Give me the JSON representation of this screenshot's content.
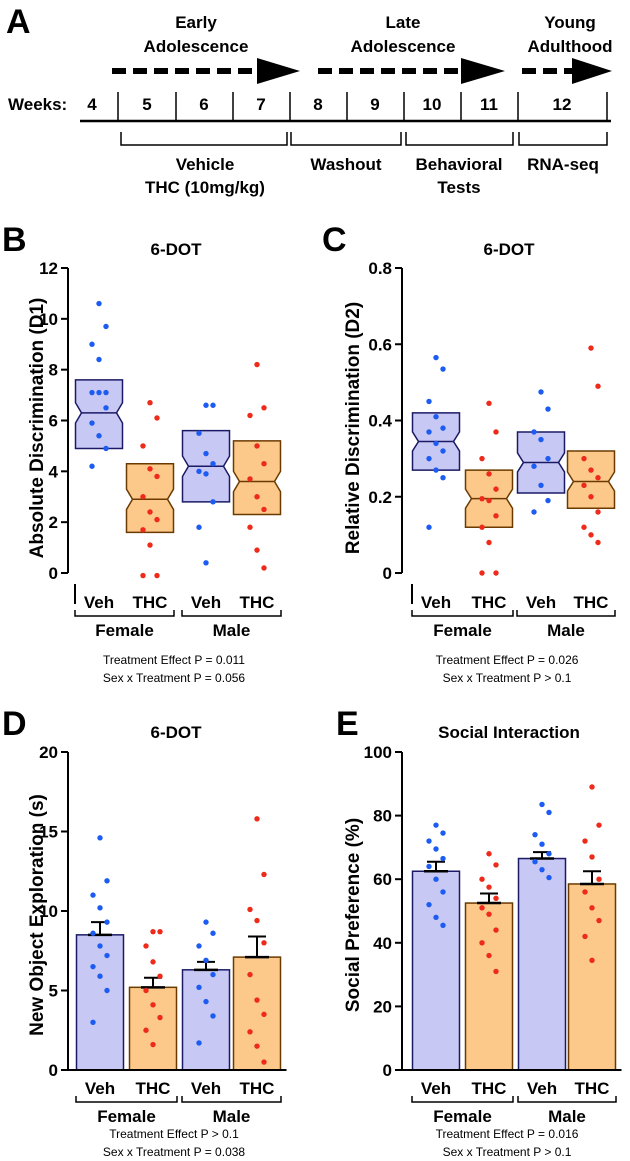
{
  "timeline": {
    "panel_label": "A",
    "stage_headers": [
      {
        "line1": "Early",
        "line2": "Adolescence"
      },
      {
        "line1": "Late",
        "line2": "Adolescence"
      },
      {
        "line1": "Young",
        "line2": "Adulthood"
      }
    ],
    "weeks_label": "Weeks:",
    "weeks": [
      "4",
      "5",
      "6",
      "7",
      "8",
      "9",
      "10",
      "11",
      "12"
    ],
    "phases": [
      {
        "line1": "Vehicle",
        "line2": "THC (10mg/kg)"
      },
      {
        "line1": "Washout",
        "line2": ""
      },
      {
        "line1": "Behavioral",
        "line2": "Tests"
      },
      {
        "line1": "RNA-seq",
        "line2": ""
      }
    ]
  },
  "colors": {
    "veh_fill": "#c8c8f4",
    "veh_stroke": "#1a1a66",
    "thc_fill": "#fcc98a",
    "thc_stroke": "#6b3a00",
    "veh_dot": "#1d5cf2",
    "thc_dot": "#ee2a1a"
  },
  "chart_data": [
    {
      "panel": "B",
      "type": "box",
      "title": "6-DOT",
      "ylabel": "Absolute Discrimination (D1)",
      "ylim": [
        0,
        12
      ],
      "yticks": [
        "0",
        "2",
        "4",
        "6",
        "8",
        "10",
        "12"
      ],
      "categories": [
        "Veh",
        "THC",
        "Veh",
        "THC"
      ],
      "groups": [
        "Female",
        "Male"
      ],
      "stats": [
        "Treatment Effect P = 0.011",
        "Sex x Treatment P = 0.056"
      ],
      "boxes": [
        {
          "q1": 4.9,
          "median": 6.3,
          "q3": 7.6,
          "notch_low": 5.9,
          "notch_high": 6.7,
          "points": [
            10.6,
            9.7,
            9.0,
            8.4,
            7.1,
            7.1,
            7.1,
            6.5,
            5.9,
            5.4,
            4.9,
            4.2
          ]
        },
        {
          "q1": 1.6,
          "median": 2.9,
          "q3": 4.3,
          "notch_low": 2.5,
          "notch_high": 3.3,
          "points": [
            6.7,
            6.1,
            5.0,
            4.1,
            3.8,
            3.0,
            2.4,
            2.1,
            1.7,
            1.1,
            -0.1,
            -0.1
          ]
        },
        {
          "q1": 2.8,
          "median": 4.2,
          "q3": 5.6,
          "notch_low": 3.8,
          "notch_high": 4.6,
          "points": [
            6.6,
            6.6,
            5.5,
            4.7,
            4.3,
            4.0,
            3.9,
            2.8,
            1.8,
            0.4
          ]
        },
        {
          "q1": 2.3,
          "median": 3.6,
          "q3": 5.2,
          "notch_low": 3.2,
          "notch_high": 4.0,
          "points": [
            8.2,
            6.5,
            6.2,
            5.0,
            4.3,
            3.7,
            3.0,
            2.5,
            1.8,
            0.9,
            0.2
          ]
        }
      ]
    },
    {
      "panel": "C",
      "type": "box",
      "title": "6-DOT",
      "ylabel": "Relative Discrimination (D2)",
      "ylim": [
        0,
        0.8
      ],
      "yticks": [
        "0",
        "0.2",
        "0.4",
        "0.6",
        "0.8"
      ],
      "categories": [
        "Veh",
        "THC",
        "Veh",
        "THC"
      ],
      "groups": [
        "Female",
        "Male"
      ],
      "stats": [
        "Treatment Effect P = 0.026",
        "Sex x Treatment P > 0.1"
      ],
      "boxes": [
        {
          "q1": 0.27,
          "median": 0.345,
          "q3": 0.42,
          "notch_low": 0.32,
          "notch_high": 0.37,
          "points": [
            0.565,
            0.535,
            0.45,
            0.41,
            0.38,
            0.37,
            0.34,
            0.32,
            0.3,
            0.27,
            0.25,
            0.12
          ]
        },
        {
          "q1": 0.12,
          "median": 0.195,
          "q3": 0.27,
          "notch_low": 0.17,
          "notch_high": 0.22,
          "points": [
            0.445,
            0.37,
            0.3,
            0.26,
            0.22,
            0.195,
            0.19,
            0.15,
            0.12,
            0.08,
            0.0,
            0.0
          ]
        },
        {
          "q1": 0.21,
          "median": 0.29,
          "q3": 0.37,
          "notch_low": 0.265,
          "notch_high": 0.315,
          "points": [
            0.475,
            0.43,
            0.37,
            0.35,
            0.3,
            0.28,
            0.23,
            0.19,
            0.16
          ]
        },
        {
          "q1": 0.17,
          "median": 0.24,
          "q3": 0.32,
          "notch_low": 0.215,
          "notch_high": 0.265,
          "points": [
            0.59,
            0.49,
            0.3,
            0.27,
            0.25,
            0.23,
            0.2,
            0.16,
            0.12,
            0.1,
            0.08
          ]
        }
      ]
    },
    {
      "panel": "D",
      "type": "bar",
      "title": "6-DOT",
      "ylabel": "New Object Exploration (s)",
      "ylim": [
        0,
        20
      ],
      "yticks": [
        "0",
        "5",
        "10",
        "15",
        "20"
      ],
      "categories": [
        "Veh",
        "THC",
        "Veh",
        "THC"
      ],
      "groups": [
        "Female",
        "Male"
      ],
      "stats": [
        "Treatment Effect P > 0.1",
        "Sex x Treatment P = 0.038"
      ],
      "bars": [
        {
          "mean": 8.5,
          "sem": 0.8,
          "points": [
            14.6,
            11.9,
            11.0,
            10.2,
            9.3,
            8.6,
            7.8,
            7.2,
            6.5,
            5.9,
            5.0,
            3.0
          ]
        },
        {
          "mean": 5.2,
          "sem": 0.6,
          "points": [
            8.7,
            8.7,
            7.8,
            6.8,
            5.9,
            5.0,
            4.1,
            3.3,
            2.5,
            1.6
          ]
        },
        {
          "mean": 6.3,
          "sem": 0.5,
          "points": [
            9.3,
            8.6,
            7.8,
            6.9,
            6.0,
            5.2,
            4.3,
            3.4,
            1.7
          ]
        },
        {
          "mean": 7.1,
          "sem": 1.3,
          "points": [
            15.8,
            12.3,
            10.1,
            9.4,
            8.0,
            6.0,
            4.4,
            3.5,
            2.4,
            1.5,
            0.5
          ]
        }
      ]
    },
    {
      "panel": "E",
      "type": "bar",
      "title": "Social Interaction",
      "ylabel": "Social Preference (%)",
      "ylim": [
        0,
        100
      ],
      "yticks": [
        "0",
        "20",
        "40",
        "60",
        "80",
        "100"
      ],
      "categories": [
        "Veh",
        "THC",
        "Veh",
        "THC"
      ],
      "groups": [
        "Female",
        "Male"
      ],
      "stats": [
        "Treatment Effect P = 0.016",
        "Sex x Treatment P > 0.1"
      ],
      "bars": [
        {
          "mean": 62.5,
          "sem": 3.0,
          "points": [
            77.0,
            74.5,
            72.0,
            69.5,
            66.5,
            64.0,
            60.0,
            56.0,
            52.0,
            48.0,
            45.5
          ]
        },
        {
          "mean": 52.5,
          "sem": 3.0,
          "points": [
            68.0,
            64.5,
            60.0,
            57.5,
            54.0,
            51.0,
            49.0,
            44.0,
            40.0,
            36.0,
            31.0
          ]
        },
        {
          "mean": 66.5,
          "sem": 2.0,
          "points": [
            83.5,
            81.0,
            74.0,
            71.0,
            68.0,
            65.5,
            63.0,
            60.5
          ]
        },
        {
          "mean": 58.5,
          "sem": 4.0,
          "points": [
            89.0,
            77.0,
            72.0,
            67.0,
            60.0,
            56.0,
            51.0,
            47.0,
            42.0,
            34.5
          ]
        }
      ]
    }
  ]
}
